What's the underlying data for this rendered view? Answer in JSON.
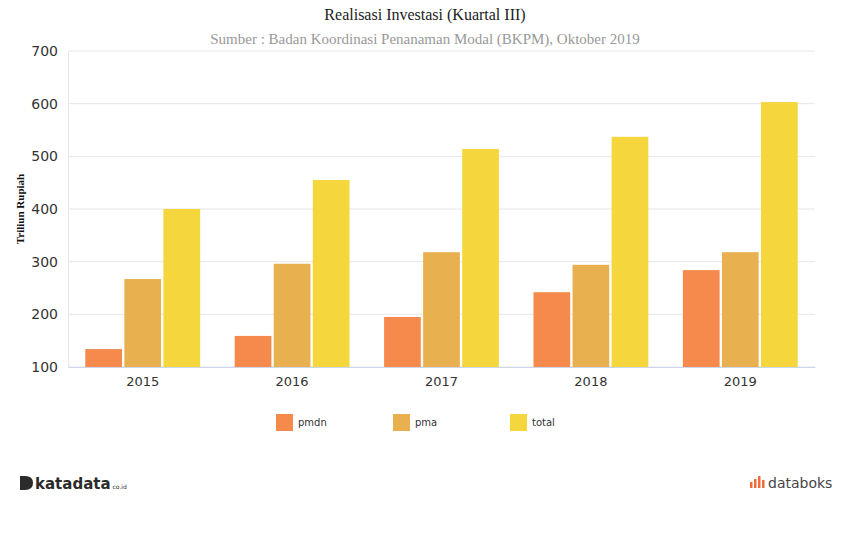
{
  "chart_data": {
    "type": "bar",
    "title": "Realisasi Investasi (Kuartal III)",
    "subtitle": "Sumber : Badan Koordinasi Penanaman Modal (BKPM), Oktober 2019",
    "y_label": "Triliun Rupiah",
    "categories": [
      "2015",
      "2016",
      "2017",
      "2018",
      "2019"
    ],
    "series": [
      {
        "name": "pmdn",
        "color": "#f58a4c",
        "values": [
          134,
          159,
          195,
          242,
          284
        ]
      },
      {
        "name": "pma",
        "color": "#e8b04f",
        "values": [
          267,
          296,
          318,
          294,
          318
        ]
      },
      {
        "name": "total",
        "color": "#f5d63d",
        "values": [
          400,
          455,
          514,
          537,
          603
        ]
      }
    ],
    "ylim": [
      100,
      700
    ],
    "yticks": [
      100,
      200,
      300,
      400,
      500,
      600,
      700
    ],
    "grid": true,
    "legend": "bottom",
    "annotations": [
      "katadata",
      "co.id",
      "databoks"
    ]
  }
}
